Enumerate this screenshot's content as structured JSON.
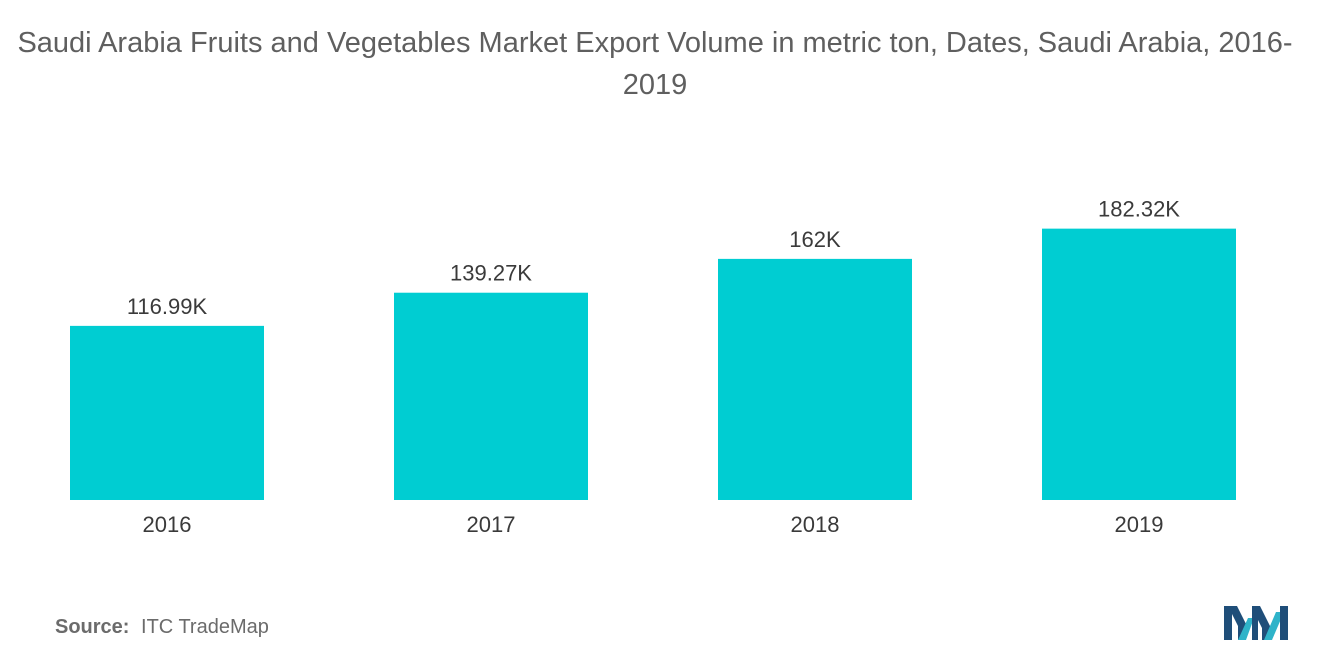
{
  "chart_data": {
    "type": "bar",
    "title": "Saudi Arabia Fruits and Vegetables Market Export Volume in metric ton, Dates, Saudi Arabia, 2016-2019",
    "categories": [
      "2016",
      "2017",
      "2018",
      "2019"
    ],
    "values": [
      116.99,
      139.27,
      162,
      182.32
    ],
    "value_labels": [
      "116.99K",
      "139.27K",
      "162K",
      "182.32K"
    ],
    "unit": "K",
    "xlabel": "",
    "ylabel": "",
    "ylim": [
      0,
      200
    ],
    "grid": false,
    "legend": "none",
    "bar_color": "#00cdd2"
  },
  "source": {
    "label": "Source:",
    "text": "ITC TradeMap"
  },
  "logo": {
    "icon": "mordor-intelligence-logo-icon",
    "colors": [
      "#1f4e79",
      "#2fb3c9"
    ]
  }
}
